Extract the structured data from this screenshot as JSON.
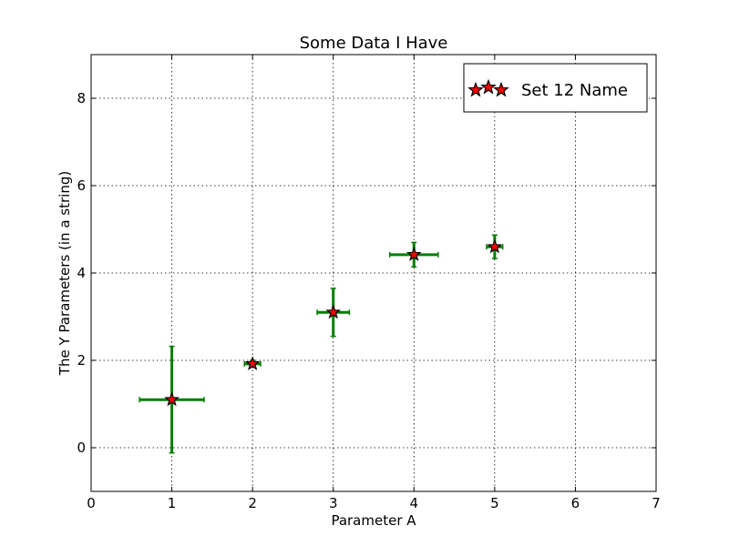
{
  "chart_data": {
    "type": "scatter",
    "title": "Some Data I Have",
    "xlabel": "Parameter A",
    "ylabel": "The Y Parameters (in a string)",
    "xlim": [
      0,
      7
    ],
    "ylim": [
      -1,
      9
    ],
    "x_ticks": [
      0,
      1,
      2,
      3,
      4,
      5,
      6,
      7
    ],
    "y_ticks": [
      0,
      2,
      4,
      6,
      8
    ],
    "grid": true,
    "legend": {
      "position": "top-right"
    },
    "series": [
      {
        "name": "Set 12 Name",
        "marker": "star",
        "marker_color": "#ff0000",
        "error_color": "#007f00",
        "x": [
          1,
          2,
          3,
          4,
          5
        ],
        "y": [
          1.1,
          1.92,
          3.1,
          4.42,
          4.6
        ],
        "xerr": [
          0.4,
          0.1,
          0.2,
          0.3,
          0.1
        ],
        "yerr": [
          1.22,
          0.08,
          0.55,
          0.28,
          0.27
        ]
      }
    ]
  }
}
